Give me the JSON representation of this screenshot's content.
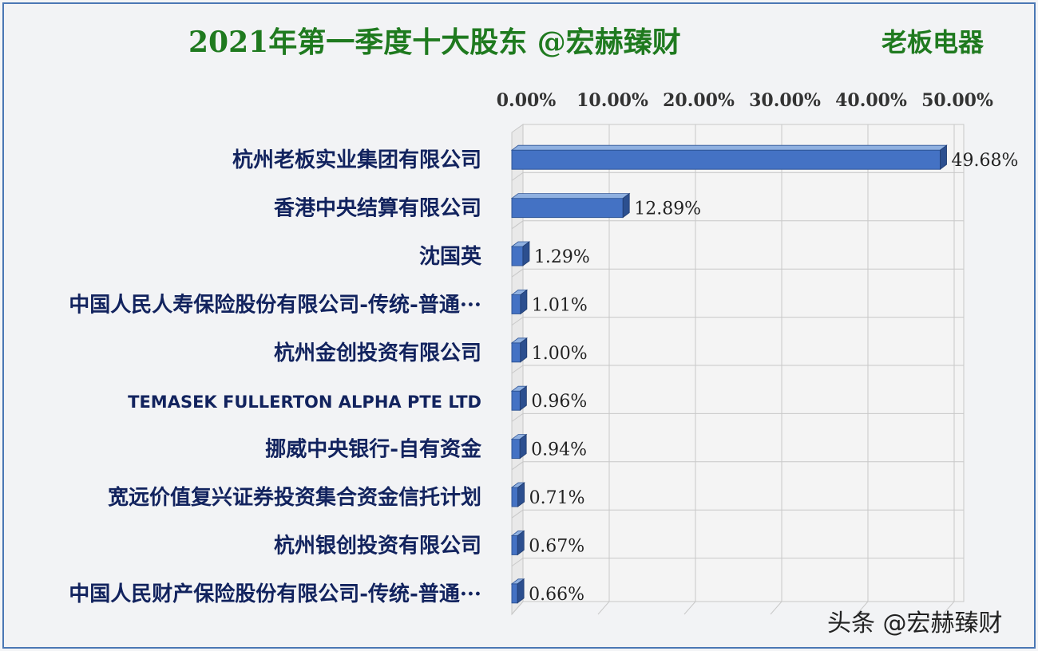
{
  "title": "2021年第一季度十大股东 @宏赫臻财",
  "company": "老板电器",
  "watermark": "头条 @宏赫臻财",
  "colors": {
    "bar_front": "#4472c4",
    "bar_top": "#8fb0e0",
    "bar_side": "#2c4f8f",
    "grid": "#c8c8c8",
    "title": "#1f7a1f",
    "category_text": "#12235e"
  },
  "chart_data": {
    "type": "bar",
    "orientation": "horizontal",
    "title": "2021年第一季度十大股东 @宏赫臻财",
    "xlim": [
      0,
      50
    ],
    "x_ticks": [
      "0.00%",
      "10.00%",
      "20.00%",
      "30.00%",
      "40.00%",
      "50.00%"
    ],
    "x_tick_values": [
      0,
      10,
      20,
      30,
      40,
      50
    ],
    "categories": [
      "杭州老板实业集团有限公司",
      "香港中央结算有限公司",
      "沈国英",
      "中国人民人寿保险股份有限公司-传统-普通···",
      "杭州金创投资有限公司",
      "TEMASEK FULLERTON ALPHA PTE LTD",
      "挪威中央银行-自有资金",
      "宽远价值复兴证券投资集合资金信托计划",
      "杭州银创投资有限公司",
      "中国人民财产保险股份有限公司-传统-普通···"
    ],
    "values": [
      49.68,
      12.89,
      1.29,
      1.01,
      1.0,
      0.96,
      0.94,
      0.71,
      0.67,
      0.66
    ],
    "value_labels": [
      "49.68%",
      "12.89%",
      "1.29%",
      "1.01%",
      "1.00%",
      "0.96%",
      "0.94%",
      "0.71%",
      "0.67%",
      "0.66%"
    ],
    "legend": "none",
    "grid": true
  }
}
